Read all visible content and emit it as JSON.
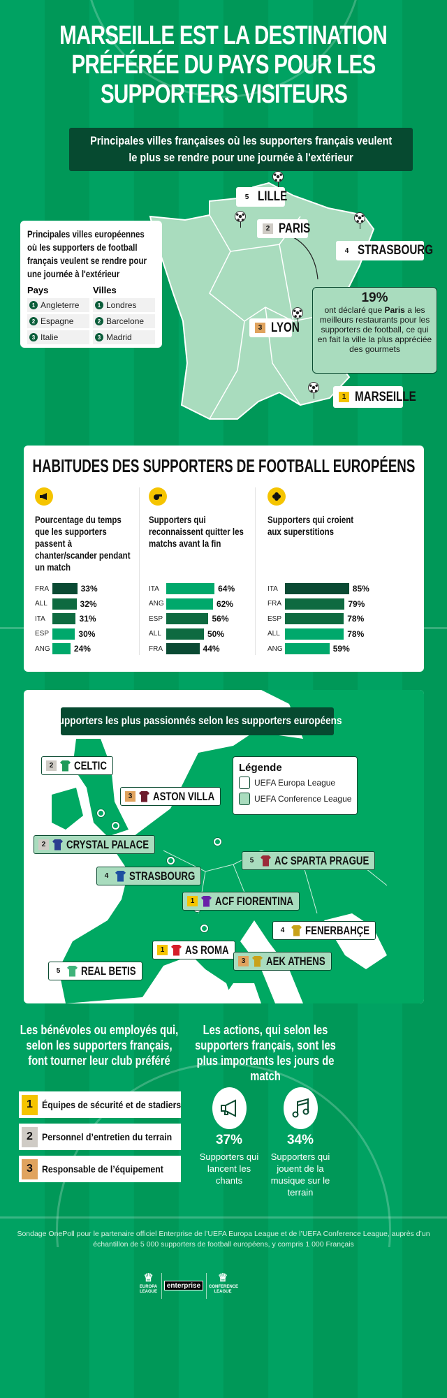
{
  "title": {
    "line1": "MARSEILLE EST LA DESTINATION",
    "line2": "PRÉFÉRÉE DU PAYS POUR LES",
    "line3": "SUPPORTERS VISITEURS"
  },
  "france": {
    "banner": {
      "line1": "Principales villes françaises où les supporters français veulent",
      "line2": "le plus se rendre pour une journée à l'extérieur"
    },
    "cities": [
      {
        "rank": "5",
        "name": "LILLE"
      },
      {
        "rank": "2",
        "name": "PARIS"
      },
      {
        "rank": "4",
        "name": "STRASBOURG"
      },
      {
        "rank": "3",
        "name": "LYON"
      },
      {
        "rank": "1",
        "name": "MARSEILLE"
      }
    ],
    "europe_card": {
      "title": "Principales villes européennes où les supporters de football français veulent se rendre pour une journée à l'extérieur",
      "countries_header": "Pays",
      "cities_header": "Villes",
      "countries": [
        "Angleterre",
        "Espagne",
        "Italie"
      ],
      "cities": [
        "Londres",
        "Barcelone",
        "Madrid"
      ]
    },
    "paris_stat": {
      "value": "19%",
      "pre": "ont déclaré que ",
      "bold": "Paris",
      "post": " a les meilleurs restaurants pour les supporters de football, ce qui en fait la ville la plus appréciée des gourmets"
    }
  },
  "habits": {
    "title": "HABITUDES DES SUPPORTERS DE FOOTBALL EUROPÉENS",
    "colors": {
      "dark": "#0a4a33",
      "mid": "#0e6a40",
      "light": "#00a86b"
    },
    "charts": [
      {
        "icon": "megaphone-icon",
        "title": "Pourcentage du temps que les supporters passent à chanter/scander pendant un match",
        "rows": [
          {
            "label": "FRA",
            "value": 33,
            "display": "33%",
            "shade": "dark"
          },
          {
            "label": "ALL",
            "value": 32,
            "display": "32%",
            "shade": "mid"
          },
          {
            "label": "ITA",
            "value": 31,
            "display": "31%",
            "shade": "mid"
          },
          {
            "label": "ESP",
            "value": 30,
            "display": "30%",
            "shade": "light"
          },
          {
            "label": "ANG",
            "value": 24,
            "display": "24%",
            "shade": "light"
          }
        ]
      },
      {
        "icon": "whistle-icon",
        "title": "Supporters qui reconnaissent quitter les matchs avant la fin",
        "rows": [
          {
            "label": "ITA",
            "value": 64,
            "display": "64%",
            "shade": "light"
          },
          {
            "label": "ANG",
            "value": 62,
            "display": "62%",
            "shade": "light"
          },
          {
            "label": "ESP",
            "value": 56,
            "display": "56%",
            "shade": "mid"
          },
          {
            "label": "ALL",
            "value": 50,
            "display": "50%",
            "shade": "mid"
          },
          {
            "label": "FRA",
            "value": 44,
            "display": "44%",
            "shade": "dark"
          }
        ]
      },
      {
        "icon": "clover-icon",
        "title": "Supporters qui croient aux superstitions",
        "rows": [
          {
            "label": "ITA",
            "value": 85,
            "display": "85%",
            "shade": "dark"
          },
          {
            "label": "FRA",
            "value": 79,
            "display": "79%",
            "shade": "mid"
          },
          {
            "label": "ESP",
            "value": 78,
            "display": "78%",
            "shade": "mid"
          },
          {
            "label": "ALL",
            "value": 78,
            "display": "78%",
            "shade": "light"
          },
          {
            "label": "ANG",
            "value": 59,
            "display": "59%",
            "shade": "light"
          }
        ]
      }
    ]
  },
  "europe": {
    "banner": "Supporters les plus passionnés selon les supporters européens",
    "legend": {
      "title": "Légende",
      "europa": "UEFA Europa League",
      "conference": "UEFA Conference League"
    },
    "clubs": [
      {
        "rank": "2",
        "name": "CELTIC",
        "league": "el",
        "shirt": "#1f9a5a"
      },
      {
        "rank": "3",
        "name": "ASTON VILLA",
        "league": "el",
        "shirt": "#6d1b2c"
      },
      {
        "rank": "2",
        "name": "CRYSTAL PALACE",
        "league": "cl",
        "shirt": "#2a3d8f"
      },
      {
        "rank": "4",
        "name": "STRASBOURG",
        "league": "cl",
        "shirt": "#1d4fa0"
      },
      {
        "rank": "5",
        "name": "AC SPARTA PRAGUE",
        "league": "cl",
        "shirt": "#9b2b3a"
      },
      {
        "rank": "1",
        "name": "ACF FIORENTINA",
        "league": "cl",
        "shirt": "#6a1fa8"
      },
      {
        "rank": "4",
        "name": "FENERBAHÇE",
        "league": "el",
        "shirt": "#c9a21a"
      },
      {
        "rank": "1",
        "name": "AS ROMA",
        "league": "el",
        "shirt": "#d61e2a"
      },
      {
        "rank": "3",
        "name": "AEK ATHENS",
        "league": "cl",
        "shirt": "#c9a21a"
      },
      {
        "rank": "5",
        "name": "REAL BETIS",
        "league": "el",
        "shirt": "#3fb37a"
      }
    ]
  },
  "bottom": {
    "volunteers_title": "Les bénévoles ou employés qui, selon les supporters français, font tourner leur club préféré",
    "volunteers": [
      {
        "rank": "1",
        "label": "Équipes de sécurité et de stadiers"
      },
      {
        "rank": "2",
        "label": "Personnel d’entretien du terrain"
      },
      {
        "rank": "3",
        "label": "Responsable de l’équipement"
      }
    ],
    "actions_title": "Les actions, qui selon les supporters français, sont les plus importants les jours de match",
    "actions": [
      {
        "icon": "megaphone-icon",
        "value": "37%",
        "label": "Supporters qui lancent les chants"
      },
      {
        "icon": "music-note-icon",
        "value": "34%",
        "label": "Supporters qui jouent de la musique sur le terrain"
      }
    ]
  },
  "footer": {
    "note": "Sondage OnePoll pour le partenaire officiel Enterprise de l’UEFA Europa League et de l’UEFA Conference League, auprès d’un échantillon de 5 000 supporters de football européens, y compris 1 000 Français",
    "logos": {
      "europa": "EUROPA LEAGUE",
      "enterprise": "enterprise",
      "conference": "CONFERENCE LEAGUE"
    }
  }
}
